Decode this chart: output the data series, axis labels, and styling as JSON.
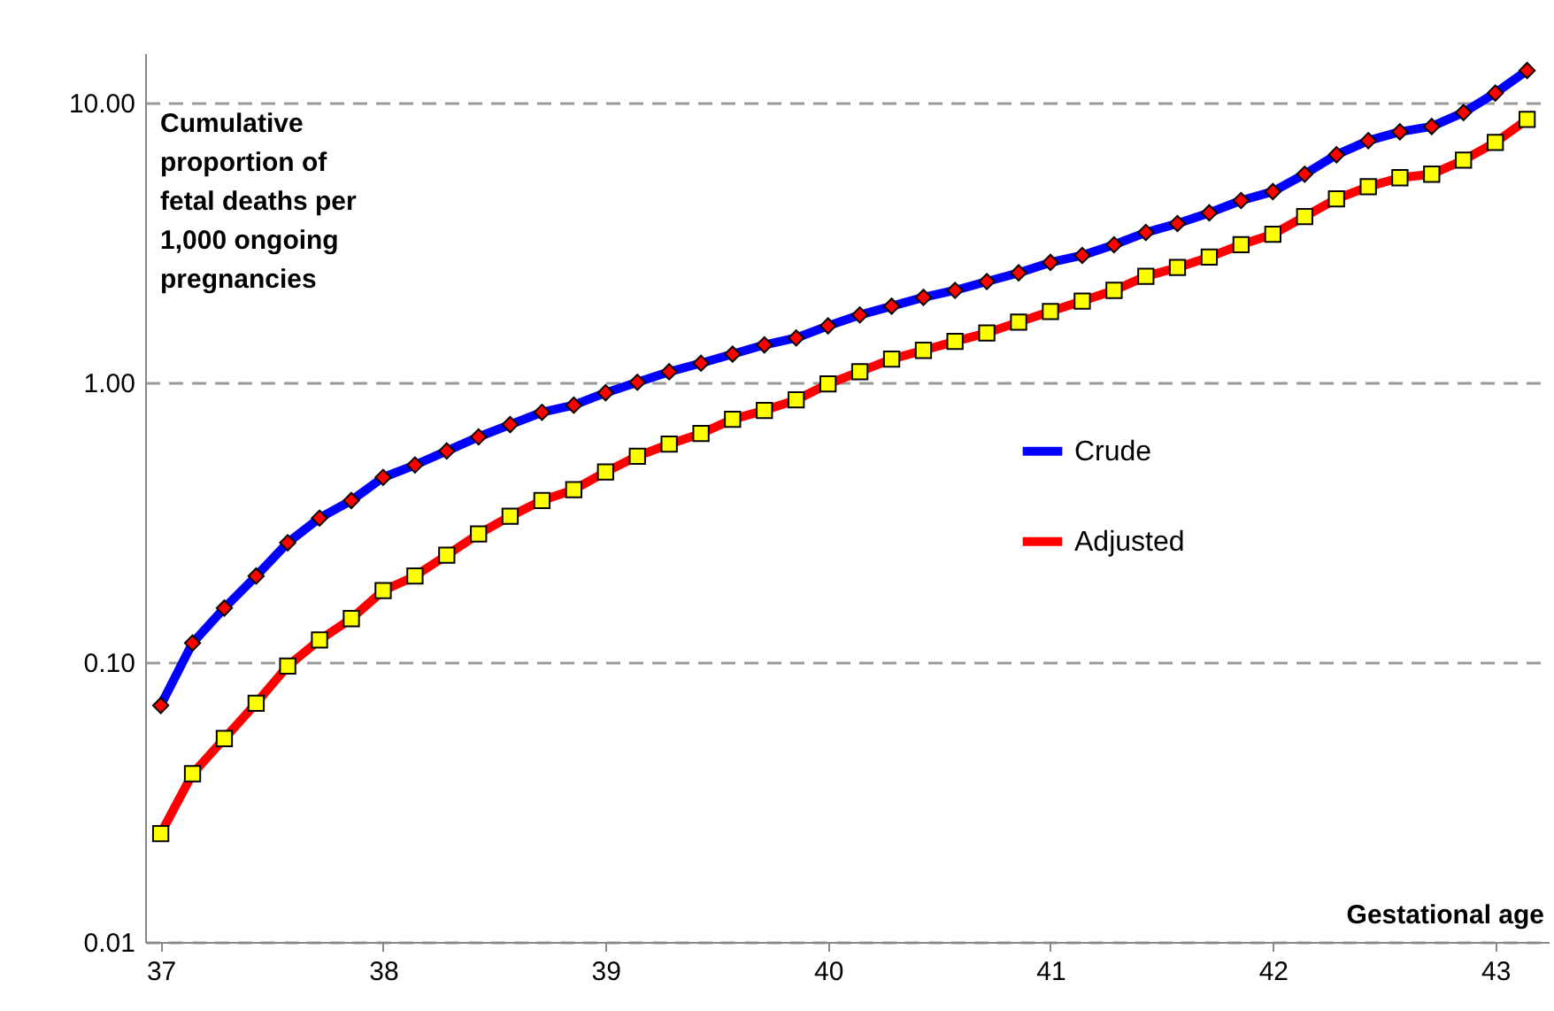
{
  "chart_data": {
    "type": "line",
    "xlabel": "Gestational age",
    "ylabel": "Cumulative proportion of fetal deaths per 1,000 ongoing pregnancies",
    "x": [
      37,
      37.143,
      37.286,
      37.429,
      37.571,
      37.714,
      37.857,
      38,
      38.143,
      38.286,
      38.429,
      38.571,
      38.714,
      38.857,
      39,
      39.143,
      39.286,
      39.429,
      39.571,
      39.714,
      39.857,
      40,
      40.143,
      40.286,
      40.429,
      40.571,
      40.714,
      40.857,
      41,
      41.143,
      41.286,
      41.429,
      41.571,
      41.714,
      41.857,
      42,
      42.143,
      42.286,
      42.429,
      42.571,
      42.714,
      42.857,
      43,
      43.143
    ],
    "series": [
      {
        "name": "Crude",
        "color": "#0000ff",
        "marker": "diamond",
        "values": [
          0.07,
          0.117,
          0.156,
          0.203,
          0.267,
          0.327,
          0.378,
          0.457,
          0.506,
          0.568,
          0.638,
          0.706,
          0.781,
          0.828,
          0.917,
          1.0,
          1.09,
          1.17,
          1.26,
          1.36,
          1.44,
          1.59,
          1.74,
          1.87,
          2.01,
          2.13,
          2.29,
          2.46,
          2.68,
          2.84,
          3.1,
          3.43,
          3.69,
          4.03,
          4.46,
          4.8,
          5.54,
          6.5,
          7.3,
          7.85,
          8.2,
          9.2,
          10.8,
          13.0
        ]
      },
      {
        "name": "Adjusted",
        "color": "#ff0000",
        "marker": "square",
        "values": [
          0.0244,
          0.0399,
          0.0533,
          0.0713,
          0.0968,
          0.12,
          0.143,
          0.18,
          0.203,
          0.241,
          0.287,
          0.332,
          0.378,
          0.413,
          0.478,
          0.544,
          0.601,
          0.656,
          0.737,
          0.793,
          0.865,
          0.986,
          1.09,
          1.21,
          1.3,
          1.4,
          1.5,
          1.64,
          1.79,
          1.95,
          2.13,
          2.39,
          2.57,
          2.8,
          3.1,
          3.38,
          3.91,
          4.52,
          5.0,
          5.38,
          5.54,
          6.22,
          7.19,
          8.69
        ]
      }
    ],
    "xlim": [
      36.93,
      43.24
    ],
    "xticks": [
      37,
      38,
      39,
      40,
      41,
      42,
      43
    ],
    "ylim": [
      0.01,
      15
    ],
    "yticks": [
      {
        "value": 0.01,
        "label": "0.01"
      },
      {
        "value": 0.1,
        "label": "0.10"
      },
      {
        "value": 1,
        "label": "1.00"
      },
      {
        "value": 10,
        "label": "10.00"
      }
    ],
    "log": "y",
    "grid": "y",
    "legend": "right",
    "line_style": "solid"
  }
}
